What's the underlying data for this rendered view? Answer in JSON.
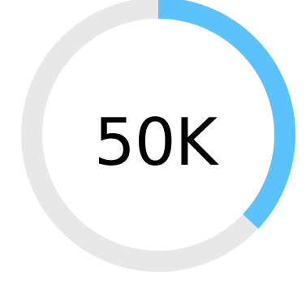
{
  "gauge": {
    "value_label": "50K",
    "progress_fraction": 0.37,
    "colors": {
      "track": "#e8e8e8",
      "progress": "#5bc2fb",
      "text": "#000000",
      "background": "#ffffff"
    }
  }
}
